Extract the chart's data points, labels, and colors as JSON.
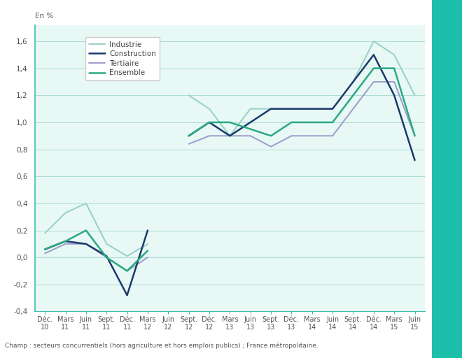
{
  "x_labels": [
    "Déc.\n10",
    "Mars\n11",
    "Juin\n11",
    "Sept.\n11",
    "Déc.\n11",
    "Mars\n12",
    "Juin\n12",
    "Sept.\n12",
    "Déc.\n12",
    "Mars\n13",
    "Juin\n13",
    "Sept.\n13",
    "Déc.\n13",
    "Mars\n14",
    "Juin\n14",
    "Sept.\n14",
    "Déc.\n14",
    "Mars\n15",
    "Juin\n15"
  ],
  "industrie": [
    0.18,
    0.33,
    0.4,
    0.1,
    0.01,
    0.1,
    null,
    1.2,
    1.1,
    0.9,
    1.1,
    1.1,
    1.1,
    1.1,
    1.1,
    1.3,
    1.6,
    1.5,
    1.2
  ],
  "construction": [
    0.06,
    0.12,
    0.1,
    0.01,
    -0.28,
    0.2,
    null,
    0.9,
    1.0,
    0.9,
    1.0,
    1.1,
    1.1,
    1.1,
    1.1,
    1.3,
    1.5,
    1.2,
    0.72
  ],
  "tertiaire": [
    0.03,
    0.1,
    0.1,
    0.0,
    -0.1,
    0.0,
    null,
    0.84,
    0.9,
    0.9,
    0.9,
    0.82,
    0.9,
    0.9,
    0.9,
    1.1,
    1.3,
    1.3,
    0.9
  ],
  "ensemble": [
    0.06,
    0.12,
    0.2,
    0.0,
    -0.1,
    0.05,
    null,
    0.9,
    1.0,
    1.0,
    0.95,
    0.9,
    1.0,
    1.0,
    1.0,
    1.2,
    1.4,
    1.4,
    0.9
  ],
  "color_industrie": "#96d0c8",
  "color_construction": "#1b3a6b",
  "color_tertiaire": "#9b9ccc",
  "color_ensemble": "#2aaa80",
  "ylim": [
    -0.4,
    1.72
  ],
  "yticks": [
    -0.4,
    -0.2,
    0.0,
    0.2,
    0.4,
    0.6,
    0.8,
    1.0,
    1.2,
    1.4,
    1.6
  ],
  "yticklabels": [
    "-0,4",
    "-0,2",
    "0,0",
    "0,2",
    "0,4",
    "0,6",
    "0,8",
    "1,0",
    "1,2",
    "1,4",
    "1,6"
  ],
  "en_pct_label": "En %",
  "footnote": "Champ : secteurs concurrentiels (hors agriculture et hors emplois publics) ; France métropolitaine.",
  "legend_labels": [
    "Industrie",
    "Construction",
    "Tertiaire",
    "Ensemble"
  ],
  "bg_color": "#e8f8f5",
  "grid_color": "#aaddd6",
  "spine_color": "#3dbdaa",
  "right_bar_color": "#1dbfaa",
  "lw_industrie": 1.4,
  "lw_construction": 1.8,
  "lw_tertiaire": 1.4,
  "lw_ensemble": 1.8
}
